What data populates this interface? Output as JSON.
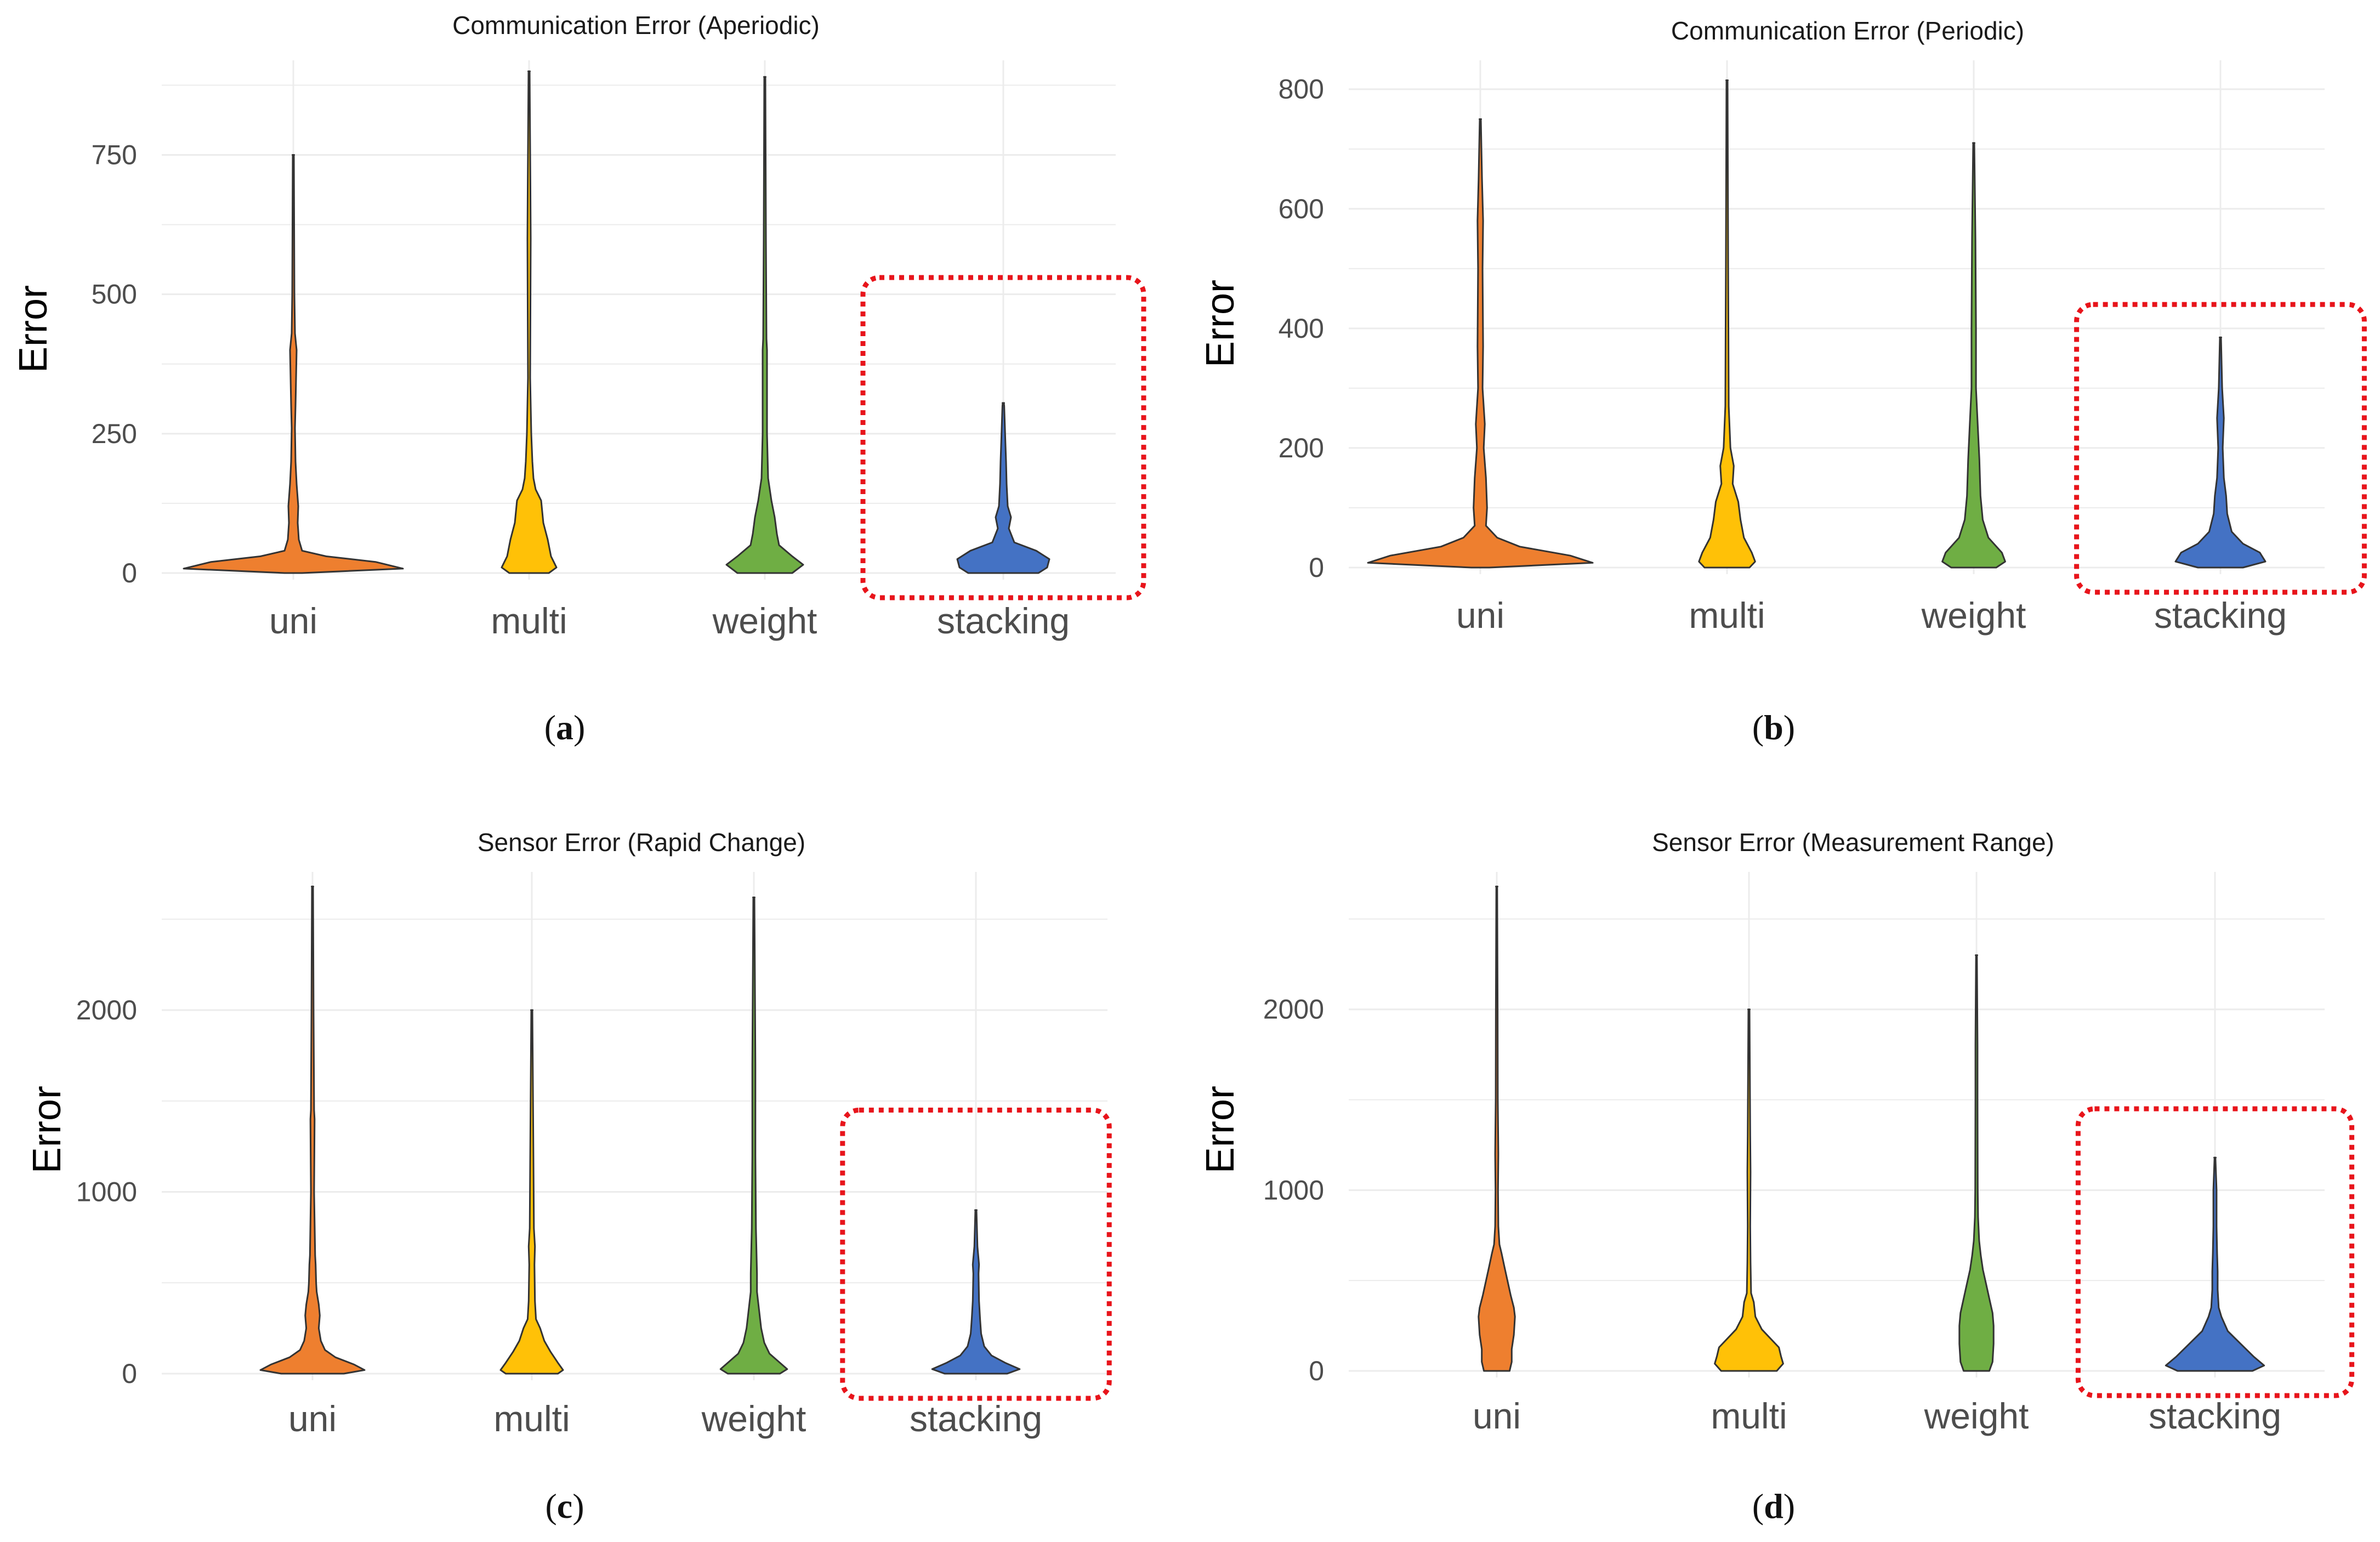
{
  "colors": {
    "uni": "#EE7F2F",
    "multi": "#FFC107",
    "weight": "#6FAE44",
    "stacking": "#4472C4",
    "highlight": "#E8141B",
    "grid": "#ECECEC",
    "tick_text": "#4D4D4D"
  },
  "chart_data": [
    {
      "id": "a",
      "type": "violin",
      "title": "Communication Error (Aperiodic)",
      "ylabel": "Error",
      "xlabel": "",
      "ylim": [
        0,
        900
      ],
      "yticks": [
        0,
        250,
        500,
        750
      ],
      "categories": [
        "uni",
        "multi",
        "weight",
        "stacking"
      ],
      "panel_label": "a",
      "highlight": {
        "category": "stacking",
        "from": 0,
        "to": 530
      },
      "series": [
        {
          "name": "uni",
          "max": 750,
          "profile": [
            [
              0,
              0.08
            ],
            [
              8,
              1.0
            ],
            [
              20,
              0.75
            ],
            [
              30,
              0.3
            ],
            [
              40,
              0.08
            ],
            [
              60,
              0.05
            ],
            [
              90,
              0.04
            ],
            [
              120,
              0.045
            ],
            [
              160,
              0.03
            ],
            [
              200,
              0.02
            ],
            [
              260,
              0.015
            ],
            [
              300,
              0.02
            ],
            [
              350,
              0.025
            ],
            [
              400,
              0.03
            ],
            [
              430,
              0.015
            ],
            [
              500,
              0.01
            ],
            [
              750,
              0.005
            ]
          ]
        },
        {
          "name": "multi",
          "max": 900,
          "profile": [
            [
              0,
              0.18
            ],
            [
              10,
              0.25
            ],
            [
              30,
              0.2
            ],
            [
              60,
              0.17
            ],
            [
              90,
              0.13
            ],
            [
              110,
              0.12
            ],
            [
              130,
              0.11
            ],
            [
              150,
              0.06
            ],
            [
              170,
              0.04
            ],
            [
              200,
              0.03
            ],
            [
              250,
              0.02
            ],
            [
              350,
              0.01
            ],
            [
              600,
              0.015
            ],
            [
              700,
              0.012
            ],
            [
              900,
              0.005
            ]
          ]
        },
        {
          "name": "weight",
          "max": 890,
          "profile": [
            [
              0,
              0.25
            ],
            [
              15,
              0.35
            ],
            [
              30,
              0.25
            ],
            [
              50,
              0.13
            ],
            [
              70,
              0.11
            ],
            [
              100,
              0.09
            ],
            [
              130,
              0.06
            ],
            [
              170,
              0.03
            ],
            [
              250,
              0.02
            ],
            [
              400,
              0.02
            ],
            [
              420,
              0.015
            ],
            [
              600,
              0.01
            ],
            [
              890,
              0.005
            ]
          ]
        },
        {
          "name": "stacking",
          "max": 305,
          "profile": [
            [
              0,
              0.32
            ],
            [
              10,
              0.4
            ],
            [
              25,
              0.42
            ],
            [
              40,
              0.3
            ],
            [
              55,
              0.1
            ],
            [
              80,
              0.05
            ],
            [
              100,
              0.07
            ],
            [
              120,
              0.04
            ],
            [
              160,
              0.03
            ],
            [
              200,
              0.025
            ],
            [
              240,
              0.018
            ],
            [
              300,
              0.008
            ],
            [
              305,
              0.005
            ]
          ]
        }
      ]
    },
    {
      "id": "b",
      "type": "violin",
      "title": "Communication Error (Periodic)",
      "ylabel": "Error",
      "xlabel": "",
      "ylim": [
        0,
        830
      ],
      "yticks": [
        0,
        200,
        400,
        600,
        800
      ],
      "categories": [
        "uni",
        "multi",
        "weight",
        "stacking"
      ],
      "panel_label": "b",
      "highlight": {
        "category": "stacking",
        "from": 0,
        "to": 440
      },
      "series": [
        {
          "name": "uni",
          "max": 750,
          "profile": [
            [
              0,
              0.08
            ],
            [
              8,
              1.0
            ],
            [
              20,
              0.8
            ],
            [
              35,
              0.35
            ],
            [
              50,
              0.15
            ],
            [
              70,
              0.05
            ],
            [
              100,
              0.06
            ],
            [
              150,
              0.05
            ],
            [
              200,
              0.03
            ],
            [
              240,
              0.04
            ],
            [
              300,
              0.02
            ],
            [
              370,
              0.025
            ],
            [
              500,
              0.02
            ],
            [
              580,
              0.025
            ],
            [
              650,
              0.015
            ],
            [
              750,
              0.005
            ]
          ]
        },
        {
          "name": "multi",
          "max": 815,
          "profile": [
            [
              0,
              0.2
            ],
            [
              10,
              0.25
            ],
            [
              25,
              0.22
            ],
            [
              50,
              0.15
            ],
            [
              80,
              0.12
            ],
            [
              110,
              0.1
            ],
            [
              140,
              0.05
            ],
            [
              170,
              0.06
            ],
            [
              200,
              0.03
            ],
            [
              270,
              0.015
            ],
            [
              500,
              0.01
            ],
            [
              815,
              0.005
            ]
          ]
        },
        {
          "name": "weight",
          "max": 710,
          "profile": [
            [
              0,
              0.2
            ],
            [
              10,
              0.28
            ],
            [
              25,
              0.25
            ],
            [
              50,
              0.13
            ],
            [
              80,
              0.08
            ],
            [
              120,
              0.06
            ],
            [
              180,
              0.05
            ],
            [
              240,
              0.035
            ],
            [
              300,
              0.02
            ],
            [
              400,
              0.02
            ],
            [
              550,
              0.015
            ],
            [
              710,
              0.005
            ]
          ]
        },
        {
          "name": "stacking",
          "max": 385,
          "profile": [
            [
              0,
              0.2
            ],
            [
              10,
              0.4
            ],
            [
              25,
              0.35
            ],
            [
              40,
              0.2
            ],
            [
              60,
              0.1
            ],
            [
              90,
              0.06
            ],
            [
              120,
              0.05
            ],
            [
              150,
              0.03
            ],
            [
              200,
              0.02
            ],
            [
              250,
              0.03
            ],
            [
              300,
              0.015
            ],
            [
              385,
              0.005
            ]
          ]
        }
      ]
    },
    {
      "id": "c",
      "type": "violin",
      "title": "Sensor Error (Rapid Change)",
      "ylabel": "Error",
      "xlabel": "",
      "ylim": [
        0,
        2700
      ],
      "yticks": [
        0,
        1000,
        2000
      ],
      "categories": [
        "uni",
        "multi",
        "weight",
        "stacking"
      ],
      "panel_label": "c",
      "highlight": {
        "category": "stacking",
        "from": 0,
        "to": 1450
      },
      "series": [
        {
          "name": "uni",
          "max": 2680,
          "profile": [
            [
              0,
              0.3
            ],
            [
              20,
              0.5
            ],
            [
              50,
              0.4
            ],
            [
              90,
              0.22
            ],
            [
              130,
              0.12
            ],
            [
              180,
              0.08
            ],
            [
              250,
              0.06
            ],
            [
              320,
              0.07
            ],
            [
              380,
              0.06
            ],
            [
              450,
              0.04
            ],
            [
              500,
              0.035
            ],
            [
              600,
              0.03
            ],
            [
              650,
              0.025
            ],
            [
              1000,
              0.015
            ],
            [
              1400,
              0.02
            ],
            [
              1450,
              0.015
            ],
            [
              2000,
              0.01
            ],
            [
              2680,
              0.005
            ]
          ]
        },
        {
          "name": "multi",
          "max": 2000,
          "profile": [
            [
              0,
              0.25
            ],
            [
              20,
              0.3
            ],
            [
              60,
              0.25
            ],
            [
              120,
              0.18
            ],
            [
              180,
              0.12
            ],
            [
              250,
              0.08
            ],
            [
              300,
              0.04
            ],
            [
              400,
              0.03
            ],
            [
              600,
              0.025
            ],
            [
              700,
              0.03
            ],
            [
              800,
              0.02
            ],
            [
              1200,
              0.015
            ],
            [
              2000,
              0.005
            ]
          ]
        },
        {
          "name": "weight",
          "max": 2620,
          "profile": [
            [
              0,
              0.25
            ],
            [
              25,
              0.32
            ],
            [
              60,
              0.25
            ],
            [
              110,
              0.15
            ],
            [
              170,
              0.1
            ],
            [
              250,
              0.07
            ],
            [
              350,
              0.05
            ],
            [
              450,
              0.03
            ],
            [
              550,
              0.03
            ],
            [
              800,
              0.02
            ],
            [
              1200,
              0.015
            ],
            [
              1700,
              0.015
            ],
            [
              2620,
              0.005
            ]
          ]
        },
        {
          "name": "stacking",
          "max": 900,
          "profile": [
            [
              0,
              0.3
            ],
            [
              25,
              0.42
            ],
            [
              60,
              0.28
            ],
            [
              100,
              0.15
            ],
            [
              150,
              0.08
            ],
            [
              220,
              0.05
            ],
            [
              300,
              0.04
            ],
            [
              400,
              0.03
            ],
            [
              550,
              0.025
            ],
            [
              600,
              0.03
            ],
            [
              700,
              0.015
            ],
            [
              900,
              0.005
            ]
          ]
        }
      ]
    },
    {
      "id": "d",
      "type": "violin",
      "title": "Sensor Error (Measurement Range)",
      "ylabel": "Error",
      "xlabel": "",
      "ylim": [
        0,
        2700
      ],
      "yticks": [
        0,
        1000,
        2000
      ],
      "categories": [
        "uni",
        "multi",
        "weight",
        "stacking"
      ],
      "panel_label": "d",
      "highlight": {
        "category": "stacking",
        "from": 0,
        "to": 1450
      },
      "series": [
        {
          "name": "uni",
          "max": 2680,
          "profile": [
            [
              0,
              0.12
            ],
            [
              50,
              0.14
            ],
            [
              120,
              0.14
            ],
            [
              200,
              0.16
            ],
            [
              300,
              0.17
            ],
            [
              350,
              0.16
            ],
            [
              420,
              0.13
            ],
            [
              500,
              0.1
            ],
            [
              580,
              0.07
            ],
            [
              650,
              0.045
            ],
            [
              700,
              0.025
            ],
            [
              800,
              0.015
            ],
            [
              1000,
              0.012
            ],
            [
              1200,
              0.015
            ],
            [
              1500,
              0.01
            ],
            [
              2000,
              0.008
            ],
            [
              2680,
              0.004
            ]
          ]
        },
        {
          "name": "multi",
          "max": 2000,
          "profile": [
            [
              0,
              0.26
            ],
            [
              40,
              0.32
            ],
            [
              80,
              0.3
            ],
            [
              130,
              0.28
            ],
            [
              180,
              0.2
            ],
            [
              230,
              0.12
            ],
            [
              300,
              0.06
            ],
            [
              380,
              0.045
            ],
            [
              430,
              0.02
            ],
            [
              600,
              0.015
            ],
            [
              800,
              0.012
            ],
            [
              1100,
              0.015
            ],
            [
              1300,
              0.012
            ],
            [
              2000,
              0.005
            ]
          ]
        },
        {
          "name": "weight",
          "max": 2300,
          "profile": [
            [
              0,
              0.12
            ],
            [
              50,
              0.15
            ],
            [
              150,
              0.16
            ],
            [
              250,
              0.16
            ],
            [
              320,
              0.15
            ],
            [
              400,
              0.12
            ],
            [
              480,
              0.09
            ],
            [
              560,
              0.06
            ],
            [
              640,
              0.04
            ],
            [
              720,
              0.025
            ],
            [
              850,
              0.015
            ],
            [
              1000,
              0.012
            ],
            [
              1500,
              0.01
            ],
            [
              1800,
              0.01
            ],
            [
              2300,
              0.004
            ]
          ]
        },
        {
          "name": "stacking",
          "max": 1180,
          "profile": [
            [
              0,
              0.35
            ],
            [
              30,
              0.46
            ],
            [
              80,
              0.36
            ],
            [
              150,
              0.24
            ],
            [
              220,
              0.12
            ],
            [
              300,
              0.06
            ],
            [
              350,
              0.035
            ],
            [
              450,
              0.025
            ],
            [
              550,
              0.025
            ],
            [
              650,
              0.02
            ],
            [
              800,
              0.015
            ],
            [
              1000,
              0.015
            ],
            [
              1180,
              0.004
            ]
          ]
        }
      ]
    }
  ]
}
